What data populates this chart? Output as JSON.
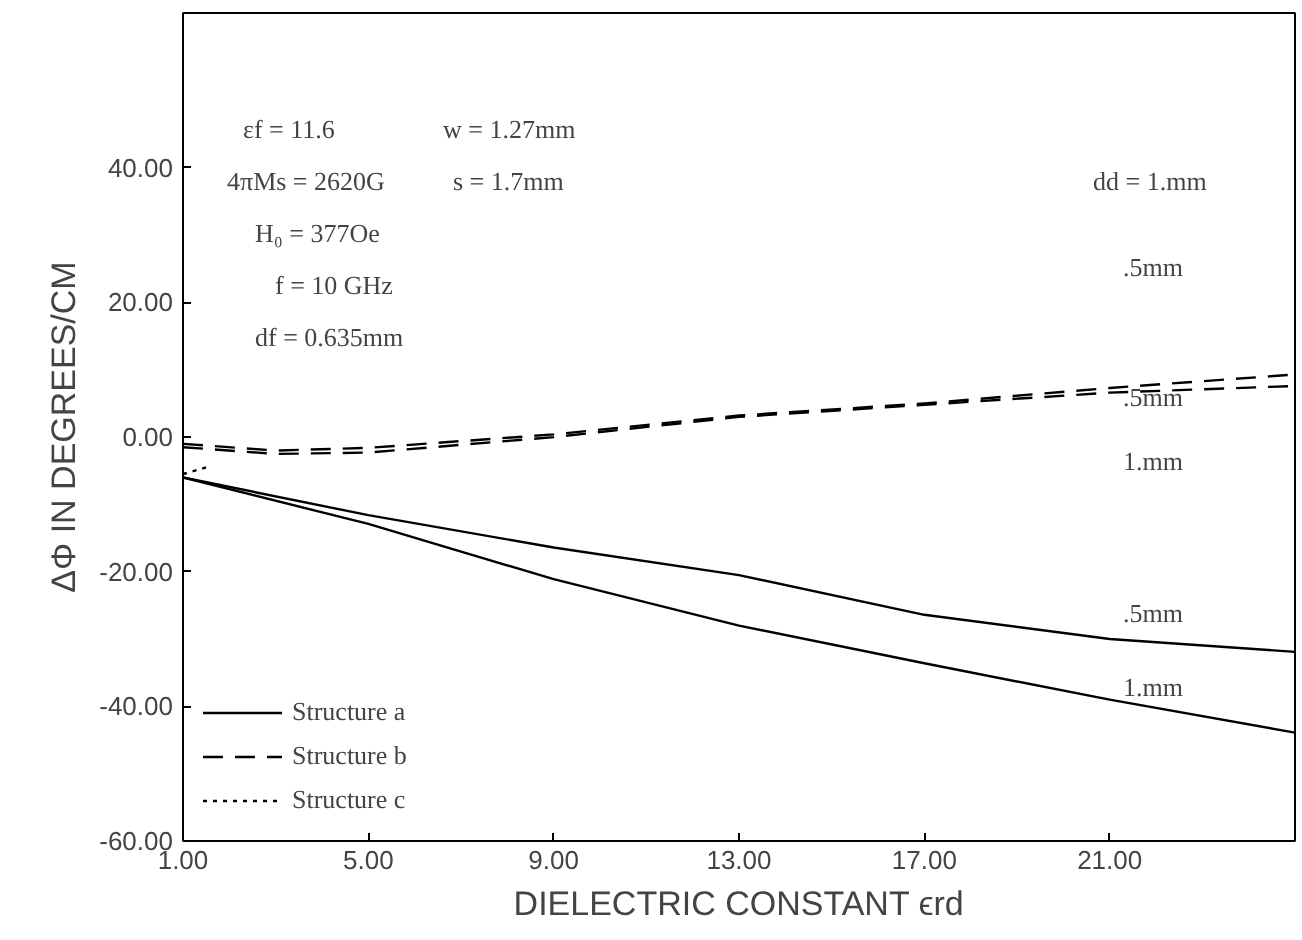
{
  "chart_data": {
    "type": "line",
    "xlabel": "DIELECTRIC CONSTANT ϵrd",
    "ylabel": "ΔΦ IN DEGREES/CM",
    "xlim": [
      1,
      25
    ],
    "ylim": [
      -60,
      63
    ],
    "xticks": [
      {
        "value": 1,
        "label": "1.00"
      },
      {
        "value": 5,
        "label": "5.00"
      },
      {
        "value": 9,
        "label": "9.00"
      },
      {
        "value": 13,
        "label": "13.00"
      },
      {
        "value": 17,
        "label": "17.00"
      },
      {
        "value": 21,
        "label": "21.00"
      }
    ],
    "yticks": [
      {
        "value": -60,
        "label": "-60.00"
      },
      {
        "value": -40,
        "label": "-40.00"
      },
      {
        "value": -20,
        "label": "-20.00"
      },
      {
        "value": 0,
        "label": "0.00"
      },
      {
        "value": 20,
        "label": "20.00"
      },
      {
        "value": 40,
        "label": "40.00"
      }
    ],
    "grid": false,
    "legend": "bottom left",
    "marker": "none",
    "series": [
      {
        "name": "Structure a",
        "color": "#000000",
        "line_style": "solid",
        "x": [
          1,
          5,
          9,
          13,
          17,
          21,
          25
        ],
        "values": [
          -6,
          -11.6,
          -16.4,
          -20.5,
          -26.4,
          -30,
          -31.9
        ]
      },
      {
        "color": "#000000",
        "line_style": "solid",
        "x": [
          1,
          5,
          9,
          13,
          17,
          21,
          25
        ],
        "values": [
          -6,
          -12.9,
          -21.1,
          -28,
          -33.6,
          -39,
          -43.9
        ]
      },
      {
        "name": "Structure b",
        "color": "#000000",
        "line_style": "dashed",
        "x": [
          1,
          3,
          5,
          9,
          13,
          17,
          21,
          25
        ],
        "values": [
          -1,
          -2,
          -1.6,
          0.4,
          3.2,
          5,
          7.3,
          9.3
        ]
      },
      {
        "color": "#000000",
        "line_style": "dashed",
        "x": [
          1,
          3,
          5,
          9,
          13,
          17,
          21,
          25
        ],
        "values": [
          -1.5,
          -2.5,
          -2.3,
          0,
          3,
          4.8,
          6.6,
          7.6
        ]
      },
      {
        "name": "Structure c",
        "color": "#000000",
        "line_style": "dotted",
        "x": [
          1,
          1.5
        ],
        "values": [
          -5.5,
          -4.5
        ]
      }
    ],
    "annotations": [
      "εf = 11.6",
      "w = 1.27mm",
      "4πMs = 2620G",
      "s = 1.7mm",
      "H₀ = 377Oe",
      "f = 10 GHz",
      "df = 0.635mm",
      "dd = 1.mm",
      ".5mm",
      ".5mm",
      "1.mm",
      ".5mm",
      "1.mm"
    ]
  }
}
